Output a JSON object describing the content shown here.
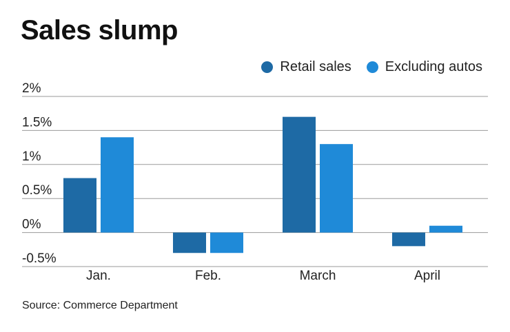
{
  "title": "Sales slump",
  "source": "Source: Commerce Department",
  "chart_data": {
    "type": "bar",
    "title": "Sales slump",
    "categories": [
      "Jan.",
      "Feb.",
      "March",
      "April"
    ],
    "series": [
      {
        "name": "Retail sales",
        "color": "#1e6aa5",
        "values": [
          0.8,
          -0.3,
          1.7,
          -0.2
        ]
      },
      {
        "name": "Excluding autos",
        "color": "#1f8ad8",
        "values": [
          1.4,
          -0.3,
          1.3,
          0.1
        ]
      }
    ],
    "yticks": [
      -0.5,
      0,
      0.5,
      1,
      1.5,
      2
    ],
    "ytick_labels": [
      "-0.5%",
      "0%",
      "0.5%",
      "1%",
      "1.5%",
      "2%"
    ],
    "ylim": [
      -0.5,
      2
    ],
    "xlabel": "",
    "ylabel": "",
    "grid": true,
    "legend_position": "top-right"
  }
}
